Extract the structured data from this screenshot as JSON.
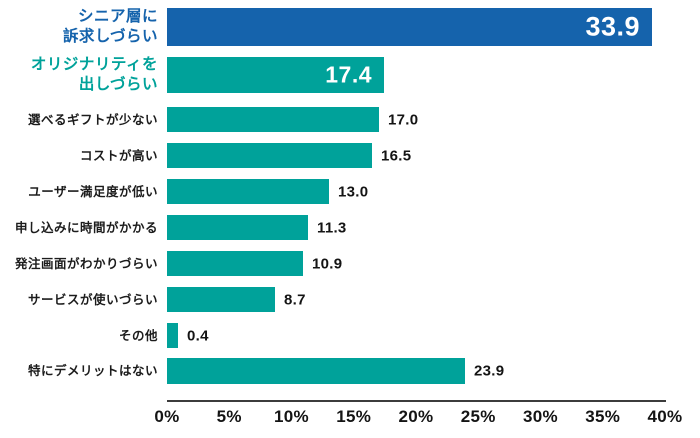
{
  "chart_data": {
    "type": "bar",
    "orientation": "horizontal",
    "title": "",
    "categories": [
      "シニア層に訴求しづらい",
      "オリジナリティを出しづらい",
      "選べるギフトが少ない",
      "コストが高い",
      "ユーザー満足度が低い",
      "申し込みに時間がかかる",
      "発注画面がわかりづらい",
      "サービスが使いづらい",
      "その他",
      "特にデメリットはない"
    ],
    "values": [
      33.9,
      17.4,
      17.0,
      16.5,
      13.0,
      11.3,
      10.9,
      8.7,
      0.4,
      23.9
    ],
    "value_labels": [
      "33.9",
      "17.4",
      "17.0",
      "16.5",
      "13.0",
      "11.3",
      "10.9",
      "8.7",
      "0.4",
      "23.9"
    ],
    "unit": "%",
    "xlim": [
      0,
      40
    ],
    "x_ticks": [
      "0%",
      "5%",
      "10%",
      "15%",
      "20%",
      "25%",
      "30%",
      "35%",
      "40%"
    ],
    "grid": false,
    "legend": "none"
  },
  "bars": [
    {
      "label_lines": [
        "シニア層に",
        "訴求しづらい"
      ],
      "value_label": "33.9",
      "bar_color": "#1563ac",
      "label_color": "#1563ac",
      "value_placement": "inside",
      "emphasized": true
    },
    {
      "label_lines": [
        "オリジナリティを",
        "出しづらい"
      ],
      "value_label": "17.4",
      "bar_color": "#00a29a",
      "label_color": "#00a29a",
      "value_placement": "inside",
      "emphasized": true
    },
    {
      "label_lines": [
        "選べるギフトが少ない"
      ],
      "value_label": "17.0",
      "bar_color": "#00a29a",
      "label_color": "#1c1c1c",
      "value_placement": "outside",
      "emphasized": false
    },
    {
      "label_lines": [
        "コストが高い"
      ],
      "value_label": "16.5",
      "bar_color": "#00a29a",
      "label_color": "#1c1c1c",
      "value_placement": "outside",
      "emphasized": false
    },
    {
      "label_lines": [
        "ユーザー満足度が低い"
      ],
      "value_label": "13.0",
      "bar_color": "#00a29a",
      "label_color": "#1c1c1c",
      "value_placement": "outside",
      "emphasized": false
    },
    {
      "label_lines": [
        "申し込みに時間がかかる"
      ],
      "value_label": "11.3",
      "bar_color": "#00a29a",
      "label_color": "#1c1c1c",
      "value_placement": "outside",
      "emphasized": false
    },
    {
      "label_lines": [
        "発注画面がわかりづらい"
      ],
      "value_label": "10.9",
      "bar_color": "#00a29a",
      "label_color": "#1c1c1c",
      "value_placement": "outside",
      "emphasized": false
    },
    {
      "label_lines": [
        "サービスが使いづらい"
      ],
      "value_label": "8.7",
      "bar_color": "#00a29a",
      "label_color": "#1c1c1c",
      "value_placement": "outside",
      "emphasized": false
    },
    {
      "label_lines": [
        "その他"
      ],
      "value_label": "0.4",
      "bar_color": "#00a29a",
      "label_color": "#1c1c1c",
      "value_placement": "outside",
      "emphasized": false
    },
    {
      "label_lines": [
        "特にデメリットはない"
      ],
      "value_label": "23.9",
      "bar_color": "#00a29a",
      "label_color": "#1c1c1c",
      "value_placement": "outside",
      "emphasized": false
    }
  ],
  "colors": {
    "highlight_blue": "#1563ac",
    "teal": "#00a29a",
    "text": "#1c1c1c",
    "axis_line": "#3c3c3c",
    "background": "#ffffff"
  }
}
